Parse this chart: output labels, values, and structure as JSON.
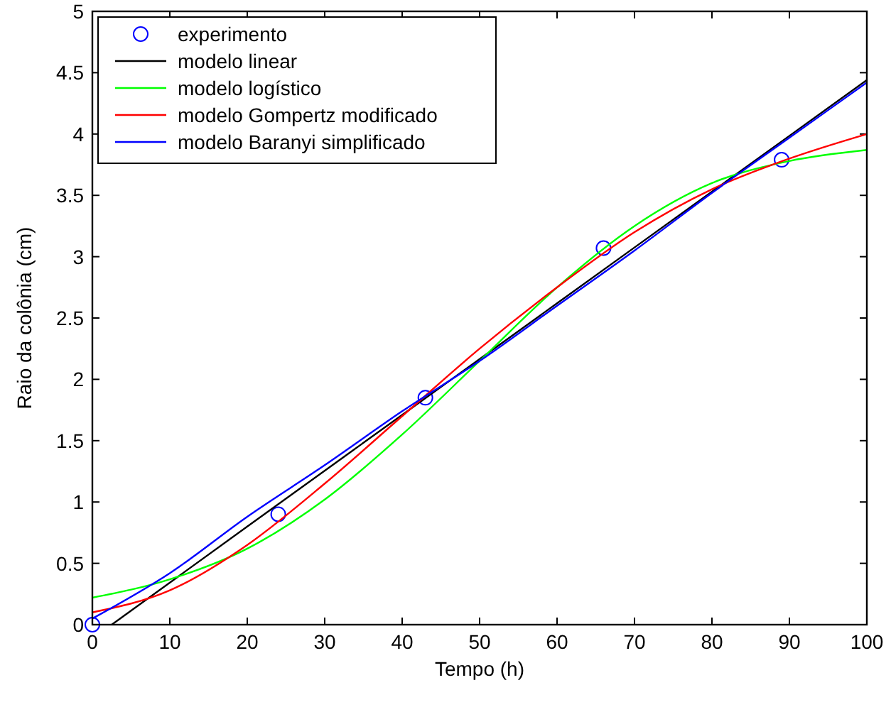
{
  "chart_data": {
    "type": "line",
    "xlabel": "Tempo (h)",
    "ylabel": "Raio da colônia (cm)",
    "xlim": [
      0,
      100
    ],
    "ylim": [
      0,
      5
    ],
    "xticks": [
      0,
      10,
      20,
      30,
      40,
      50,
      60,
      70,
      80,
      90,
      100
    ],
    "yticks": [
      0,
      0.5,
      1,
      1.5,
      2,
      2.5,
      3,
      3.5,
      4,
      4.5,
      5
    ],
    "grid": false,
    "legend": "top left",
    "series": [
      {
        "name": "experimento",
        "type": "scatter",
        "marker": "circle",
        "color": "#0000ff",
        "x": [
          0,
          24,
          43,
          66,
          89
        ],
        "values": [
          0,
          0.9,
          1.85,
          3.07,
          3.79
        ]
      },
      {
        "name": "modelo linear",
        "color": "#000000",
        "x": [
          2.5,
          20,
          40,
          60,
          80,
          100
        ],
        "values": [
          0,
          0.8,
          1.71,
          2.62,
          3.53,
          4.44
        ]
      },
      {
        "name": "modelo logístico",
        "color": "#00ff00",
        "x": [
          0,
          10,
          20,
          30,
          40,
          50,
          60,
          70,
          80,
          90,
          100
        ],
        "values": [
          0.22,
          0.37,
          0.62,
          1.02,
          1.55,
          2.15,
          2.75,
          3.25,
          3.6,
          3.78,
          3.87
        ]
      },
      {
        "name": "modelo Gompertz modificado",
        "color": "#ff0000",
        "x": [
          0,
          10,
          20,
          30,
          40,
          50,
          60,
          70,
          80,
          90,
          100
        ],
        "values": [
          0.1,
          0.28,
          0.65,
          1.15,
          1.7,
          2.25,
          2.75,
          3.2,
          3.55,
          3.8,
          4.0
        ]
      },
      {
        "name": "modelo Baranyi simplificado",
        "color": "#0000ff",
        "x": [
          0,
          10,
          20,
          30,
          40,
          50,
          60,
          70,
          80,
          90,
          100
        ],
        "values": [
          0.05,
          0.42,
          0.88,
          1.3,
          1.74,
          2.15,
          2.6,
          3.05,
          3.52,
          3.97,
          4.42
        ]
      }
    ]
  }
}
